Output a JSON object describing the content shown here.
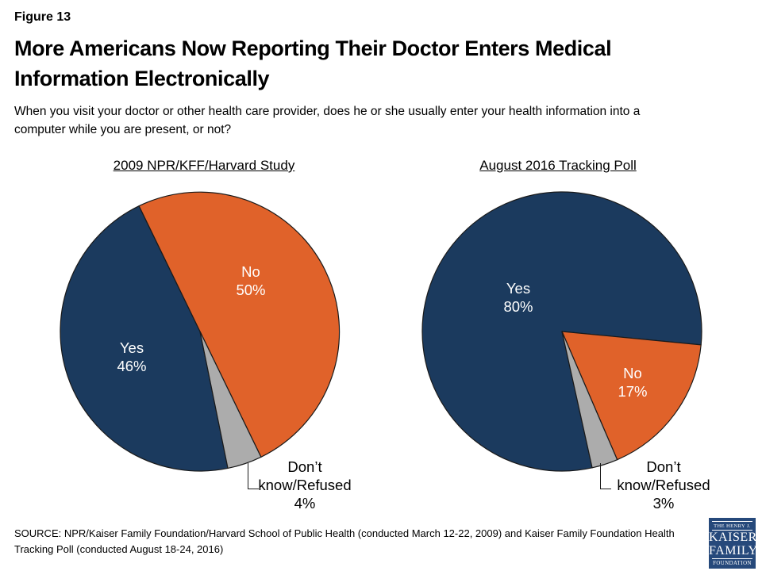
{
  "page": {
    "background": "#FFFFFF"
  },
  "header": {
    "figure_label": "Figure 13",
    "title": "More Americans Now Reporting Their Doctor Enters Medical Information Electronically",
    "question": "When you visit your doctor or other health care provider, does he or she usually enter your health information into a computer while you are present, or not?"
  },
  "colors": {
    "yes_slice": "#1B3A5E",
    "no_slice": "#E0622A",
    "dk_slice": "#ACACAC",
    "slice_outline": "#1A1A1A",
    "inside_label_text": "#FFFFFF",
    "outside_label_text": "#000000",
    "logo_background": "#26497B"
  },
  "chart_data": [
    {
      "type": "pie",
      "title": "2009 NPR/KFF/Harvard Study",
      "direction": "clockwise",
      "start_angle_from_top_deg": 168.5,
      "legend": "none",
      "slices": [
        {
          "label": "Yes",
          "value": 46,
          "value_label": "46%",
          "color": "#1B3A5E",
          "label_position": "inside"
        },
        {
          "label": "No",
          "value": 50,
          "value_label": "50%",
          "color": "#E0622A",
          "label_position": "inside"
        },
        {
          "label": "Don’t know/Refused",
          "label_lines": [
            "Don’t",
            "know/Refused"
          ],
          "value": 4,
          "value_label": "4%",
          "color": "#ACACAC",
          "label_position": "outside-callout"
        }
      ]
    },
    {
      "type": "pie",
      "title": "August 2016 Tracking Poll",
      "direction": "clockwise",
      "start_angle_from_top_deg": 167.5,
      "legend": "none",
      "slices": [
        {
          "label": "Yes",
          "value": 80,
          "value_label": "80%",
          "color": "#1B3A5E",
          "label_position": "inside"
        },
        {
          "label": "No",
          "value": 17,
          "value_label": "17%",
          "color": "#E0622A",
          "label_position": "inside"
        },
        {
          "label": "Don’t know/Refused",
          "label_lines": [
            "Don’t",
            "know/Refused"
          ],
          "value": 3,
          "value_label": "3%",
          "color": "#ACACAC",
          "label_position": "outside-callout"
        }
      ]
    }
  ],
  "footer": {
    "source": "SOURCE: NPR/Kaiser Family Foundation/Harvard School of Public Health (conducted March 12-22, 2009) and Kaiser Family Foundation Health Tracking Poll (conducted August 18-24, 2016)"
  },
  "logo": {
    "line1": "THE HENRY J.",
    "line2": "KAISER",
    "line3": "FAMILY",
    "line4": "FOUNDATION"
  }
}
